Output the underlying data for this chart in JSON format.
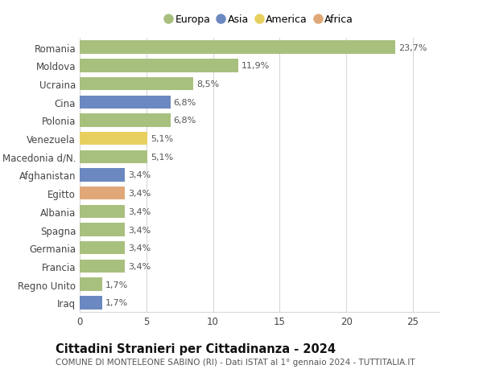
{
  "countries": [
    "Romania",
    "Moldova",
    "Ucraina",
    "Cina",
    "Polonia",
    "Venezuela",
    "Macedonia d/N.",
    "Afghanistan",
    "Egitto",
    "Albania",
    "Spagna",
    "Germania",
    "Francia",
    "Regno Unito",
    "Iraq"
  ],
  "values": [
    23.7,
    11.9,
    8.5,
    6.8,
    6.8,
    5.1,
    5.1,
    3.4,
    3.4,
    3.4,
    3.4,
    3.4,
    3.4,
    1.7,
    1.7
  ],
  "labels": [
    "23,7%",
    "11,9%",
    "8,5%",
    "6,8%",
    "6,8%",
    "5,1%",
    "5,1%",
    "3,4%",
    "3,4%",
    "3,4%",
    "3,4%",
    "3,4%",
    "3,4%",
    "1,7%",
    "1,7%"
  ],
  "continents": [
    "Europa",
    "Europa",
    "Europa",
    "Asia",
    "Europa",
    "America",
    "Europa",
    "Asia",
    "Africa",
    "Europa",
    "Europa",
    "Europa",
    "Europa",
    "Europa",
    "Asia"
  ],
  "colors": {
    "Europa": "#a8c07e",
    "Asia": "#6b88c0",
    "America": "#e8d060",
    "Africa": "#e0a878"
  },
  "legend_order": [
    "Europa",
    "Asia",
    "America",
    "Africa"
  ],
  "xlim": [
    0,
    27
  ],
  "xticks": [
    0,
    5,
    10,
    15,
    20,
    25
  ],
  "title": "Cittadini Stranieri per Cittadinanza - 2024",
  "subtitle": "COMUNE DI MONTELEONE SABINO (RI) - Dati ISTAT al 1° gennaio 2024 - TUTTITALIA.IT",
  "background_color": "#ffffff",
  "bar_height": 0.72,
  "grid_color": "#d8d8d8",
  "label_fontsize": 8.0,
  "ytick_fontsize": 8.5,
  "xtick_fontsize": 8.5,
  "title_fontsize": 10.5,
  "subtitle_fontsize": 7.5
}
